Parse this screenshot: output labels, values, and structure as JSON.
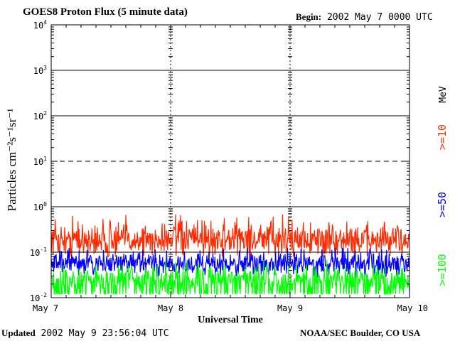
{
  "header": {
    "title": "GOES8 Proton Flux (5 minute data)",
    "begin_label": "Begin:",
    "begin_value": "2002 May 7 0000 UTC"
  },
  "footer": {
    "updated_label": "Updated",
    "updated_value": "2002 May  9 23:56:04 UTC",
    "credit": "NOAA/SEC Boulder, CO USA"
  },
  "chart_data": {
    "type": "line",
    "title": "GOES8 Proton Flux (5 minute data)",
    "xlabel": "Universal Time",
    "ylabel": "Particles cm⁻²s⁻¹sr⁻¹",
    "yscale": "log",
    "ylim": [
      0.01,
      10000
    ],
    "xlim": [
      0,
      3
    ],
    "x_ticks": [
      {
        "x": 0,
        "label": "May 7"
      },
      {
        "x": 1,
        "label": "May 8"
      },
      {
        "x": 2,
        "label": "May 9"
      },
      {
        "x": 3,
        "label": "May 10"
      }
    ],
    "y_ticks": [
      {
        "value": 10000,
        "base": "10",
        "exp": "4"
      },
      {
        "value": 1000,
        "base": "10",
        "exp": "3"
      },
      {
        "value": 100,
        "base": "10",
        "exp": "2"
      },
      {
        "value": 10,
        "base": "10",
        "exp": "1"
      },
      {
        "value": 1,
        "base": "10",
        "exp": "0"
      },
      {
        "value": 0.1,
        "base": "10",
        "exp": "-1"
      },
      {
        "value": 0.01,
        "base": "10",
        "exp": "-2"
      }
    ],
    "grid": true,
    "threshold_lines": [
      {
        "value": 10,
        "style": "dashed"
      },
      {
        "value": 0.1,
        "style": "solid"
      }
    ],
    "unit_label": "MeV",
    "series": [
      {
        "name": ">=10",
        "color": "#ff2a00",
        "typical": 0.18,
        "range": [
          0.08,
          0.7
        ]
      },
      {
        "name": ">=50",
        "color": "#0000ff",
        "typical": 0.055,
        "range": [
          0.025,
          0.13
        ]
      },
      {
        "name": ">=100",
        "color": "#00ff00",
        "typical": 0.025,
        "range": [
          0.012,
          0.07
        ]
      }
    ]
  }
}
